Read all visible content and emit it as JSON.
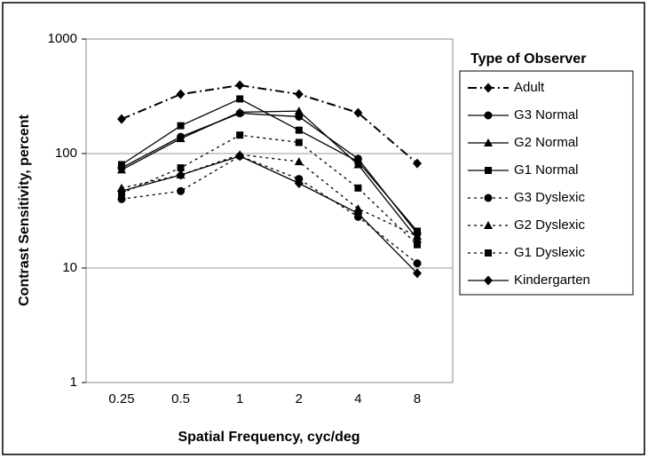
{
  "chart_data": {
    "type": "line",
    "x_label": "Spatial Frequency, cyc/deg",
    "y_label": "Contrast Sensitivity, percent",
    "legend_title": "Type of Observer",
    "categories": [
      "0.25",
      "0.5",
      "1",
      "2",
      "4",
      "8"
    ],
    "ylim": [
      1,
      1000
    ],
    "yticks": [
      1,
      10,
      100,
      1000
    ],
    "yscale": "log",
    "grid": true,
    "legend": "right",
    "series": [
      {
        "name": "Adult",
        "color": "#000000",
        "marker": "diamond",
        "line_style": "dashdot",
        "values": [
          200,
          330,
          395,
          330,
          227,
          82
        ]
      },
      {
        "name": "G3 Normal",
        "color": "#000000",
        "marker": "circle",
        "line_style": "solid",
        "values": [
          75,
          140,
          225,
          210,
          90,
          20
        ]
      },
      {
        "name": "G2 Normal",
        "color": "#000000",
        "marker": "triangle",
        "line_style": "solid",
        "values": [
          72,
          135,
          230,
          235,
          80,
          18
        ]
      },
      {
        "name": "G1 Normal",
        "color": "#000000",
        "marker": "square",
        "line_style": "solid",
        "values": [
          80,
          175,
          300,
          160,
          85,
          21
        ]
      },
      {
        "name": "G3 Dyslexic",
        "color": "#000000",
        "marker": "circle",
        "line_style": "dotted",
        "values": [
          40,
          47,
          95,
          60,
          28,
          11
        ]
      },
      {
        "name": "G2 Dyslexic",
        "color": "#000000",
        "marker": "triangle",
        "line_style": "dotted",
        "values": [
          50,
          65,
          98,
          85,
          33,
          19
        ]
      },
      {
        "name": "G1 Dyslexic",
        "color": "#000000",
        "marker": "square",
        "line_style": "dotted",
        "values": [
          45,
          75,
          145,
          125,
          50,
          16
        ]
      },
      {
        "name": "Kindergarten",
        "color": "#000000",
        "marker": "diamond",
        "line_style": "solid",
        "values": [
          47,
          65,
          95,
          55,
          30,
          9
        ]
      }
    ]
  }
}
